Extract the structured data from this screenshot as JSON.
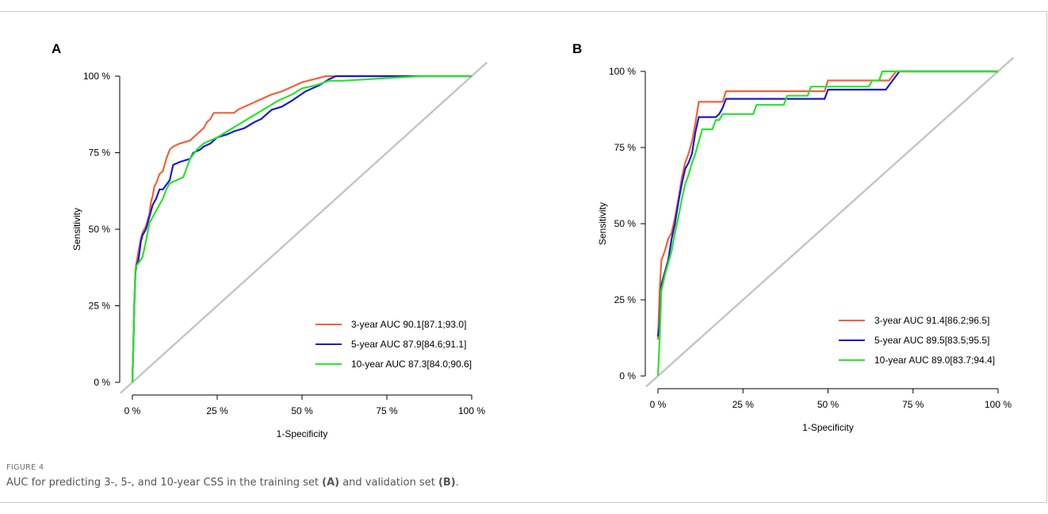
{
  "figure": {
    "label": "FIGURE 4",
    "caption": {
      "t1": "AUC for predicting 3-, 5-, and 10-year CSS in the training set ",
      "b1": "(A)",
      "t2": " and validation set ",
      "b2": "(B)",
      "t3": "."
    }
  },
  "chart_data": [
    {
      "type": "line",
      "panel": "A",
      "xlabel": "1-Specificity",
      "ylabel": "Sensitivity",
      "xlim": [
        0,
        100
      ],
      "ylim": [
        0,
        100
      ],
      "x_ticks": [
        "0 %",
        "25 %",
        "50 %",
        "75 %",
        "100 %"
      ],
      "y_ticks": [
        "0 %",
        "25 %",
        "50 %",
        "75 %",
        "100 %"
      ],
      "legend_position": "bottom-right",
      "series": [
        {
          "name": "3-year AUC  90.1[87.1;93.0]",
          "color": "#f0623c",
          "x": [
            0,
            0.3,
            0.6,
            0.9,
            1.2,
            1.5,
            2,
            2.5,
            3,
            3.5,
            4,
            5,
            5.5,
            6,
            6.5,
            7,
            8,
            9,
            10,
            11,
            12,
            14,
            17,
            18,
            19,
            21,
            22,
            23,
            24,
            26,
            30,
            31,
            33,
            35,
            37,
            39,
            41,
            44,
            48,
            50,
            57,
            85,
            100
          ],
          "y": [
            0,
            13,
            27,
            37,
            39,
            41,
            44,
            47,
            49,
            50,
            51,
            55,
            59,
            61,
            64,
            65,
            68,
            69,
            73,
            76,
            77,
            78,
            79,
            80,
            81,
            83,
            85,
            86,
            88,
            88,
            88,
            89,
            90,
            91,
            92,
            93,
            94,
            95,
            97,
            98,
            100,
            100,
            100
          ]
        },
        {
          "name": "5-year AUC  87.9[84.6;91.1]",
          "color": "#1a1ad2",
          "x": [
            0,
            0.3,
            0.6,
            0.9,
            1.2,
            1.8,
            2.5,
            3,
            4,
            5,
            6,
            7,
            8,
            9,
            11,
            12,
            14,
            17,
            18,
            20,
            21,
            23,
            25,
            28,
            30,
            33,
            36,
            38,
            41,
            44,
            47,
            51,
            55,
            58,
            60,
            85,
            100
          ],
          "y": [
            0,
            13,
            27,
            36,
            38,
            40,
            46,
            48,
            50,
            54,
            58,
            60,
            63,
            63,
            66,
            71,
            72,
            73,
            75,
            76,
            77,
            78,
            80,
            81,
            82,
            83,
            85,
            86,
            89,
            90,
            92,
            95,
            97,
            99,
            100,
            100,
            100
          ]
        },
        {
          "name": "10-year AUC 87.3[84.0;90.6]",
          "color": "#29e32b",
          "x": [
            0,
            0.3,
            0.6,
            0.9,
            1.2,
            1.8,
            2.5,
            3,
            4,
            5,
            6,
            7,
            8,
            9,
            10,
            11,
            13,
            15,
            16,
            17,
            19,
            21,
            23,
            25,
            28,
            31,
            34,
            37,
            40,
            43,
            47,
            50,
            54,
            58,
            62,
            85,
            100
          ],
          "y": [
            0,
            14,
            28,
            37,
            38,
            39,
            40,
            41,
            46,
            52,
            54,
            56,
            58,
            60,
            63,
            65,
            66,
            67,
            70,
            73,
            76,
            78,
            79,
            80,
            82,
            84,
            86,
            88,
            90,
            92,
            94,
            96,
            97,
            98.5,
            98.5,
            100,
            100
          ]
        }
      ]
    },
    {
      "type": "line",
      "panel": "B",
      "xlabel": "1-Specificity",
      "ylabel": "Sensitivity",
      "xlim": [
        0,
        100
      ],
      "ylim": [
        0,
        100
      ],
      "x_ticks": [
        "0 %",
        "25 %",
        "50 %",
        "75 %",
        "100 %"
      ],
      "y_ticks": [
        "0 %",
        "25 %",
        "50 %",
        "75 %",
        "100 %"
      ],
      "legend_position": "bottom-right",
      "series": [
        {
          "name": "3-year AUC  91.4[86.2;96.5]",
          "color": "#f0623c",
          "x": [
            0,
            0.5,
            1,
            2,
            3,
            4,
            5,
            6,
            7,
            8,
            9,
            10,
            11,
            12,
            13,
            19,
            20,
            49,
            50,
            68,
            70,
            100
          ],
          "y": [
            12,
            28,
            38,
            41,
            45,
            47,
            52,
            58,
            65,
            70,
            73,
            77,
            83,
            90,
            90,
            90,
            93.5,
            93.5,
            97,
            97,
            100,
            100
          ]
        },
        {
          "name": "5-year AUC  89.5[83.5;95.5]",
          "color": "#1a1ad2",
          "x": [
            0,
            0.5,
            1,
            2,
            3,
            4,
            5,
            6,
            7,
            8,
            9,
            10,
            11,
            12,
            17,
            18,
            19,
            20,
            49,
            50,
            67,
            69,
            71,
            100
          ],
          "y": [
            13,
            17,
            30,
            34,
            38,
            45,
            50,
            57,
            63,
            68,
            70,
            73,
            80,
            85,
            85,
            86,
            88,
            91,
            91,
            94,
            94,
            97,
            100,
            100
          ]
        },
        {
          "name": "10-year AUC 89.0[83.7;94.4]",
          "color": "#29e32b",
          "x": [
            0,
            0.5,
            1,
            2,
            3,
            4,
            5,
            6,
            7,
            8,
            9,
            10,
            11,
            12,
            13,
            16,
            17,
            18,
            19,
            28,
            29,
            37,
            38,
            44,
            45,
            62,
            63,
            65,
            66,
            100
          ],
          "y": [
            0,
            12,
            28,
            33,
            37,
            41,
            47,
            52,
            58,
            63,
            66,
            70,
            73,
            77,
            81,
            81,
            84,
            84,
            86,
            86,
            89,
            89,
            92,
            92,
            95,
            95,
            97,
            97,
            100,
            100
          ]
        }
      ]
    }
  ]
}
